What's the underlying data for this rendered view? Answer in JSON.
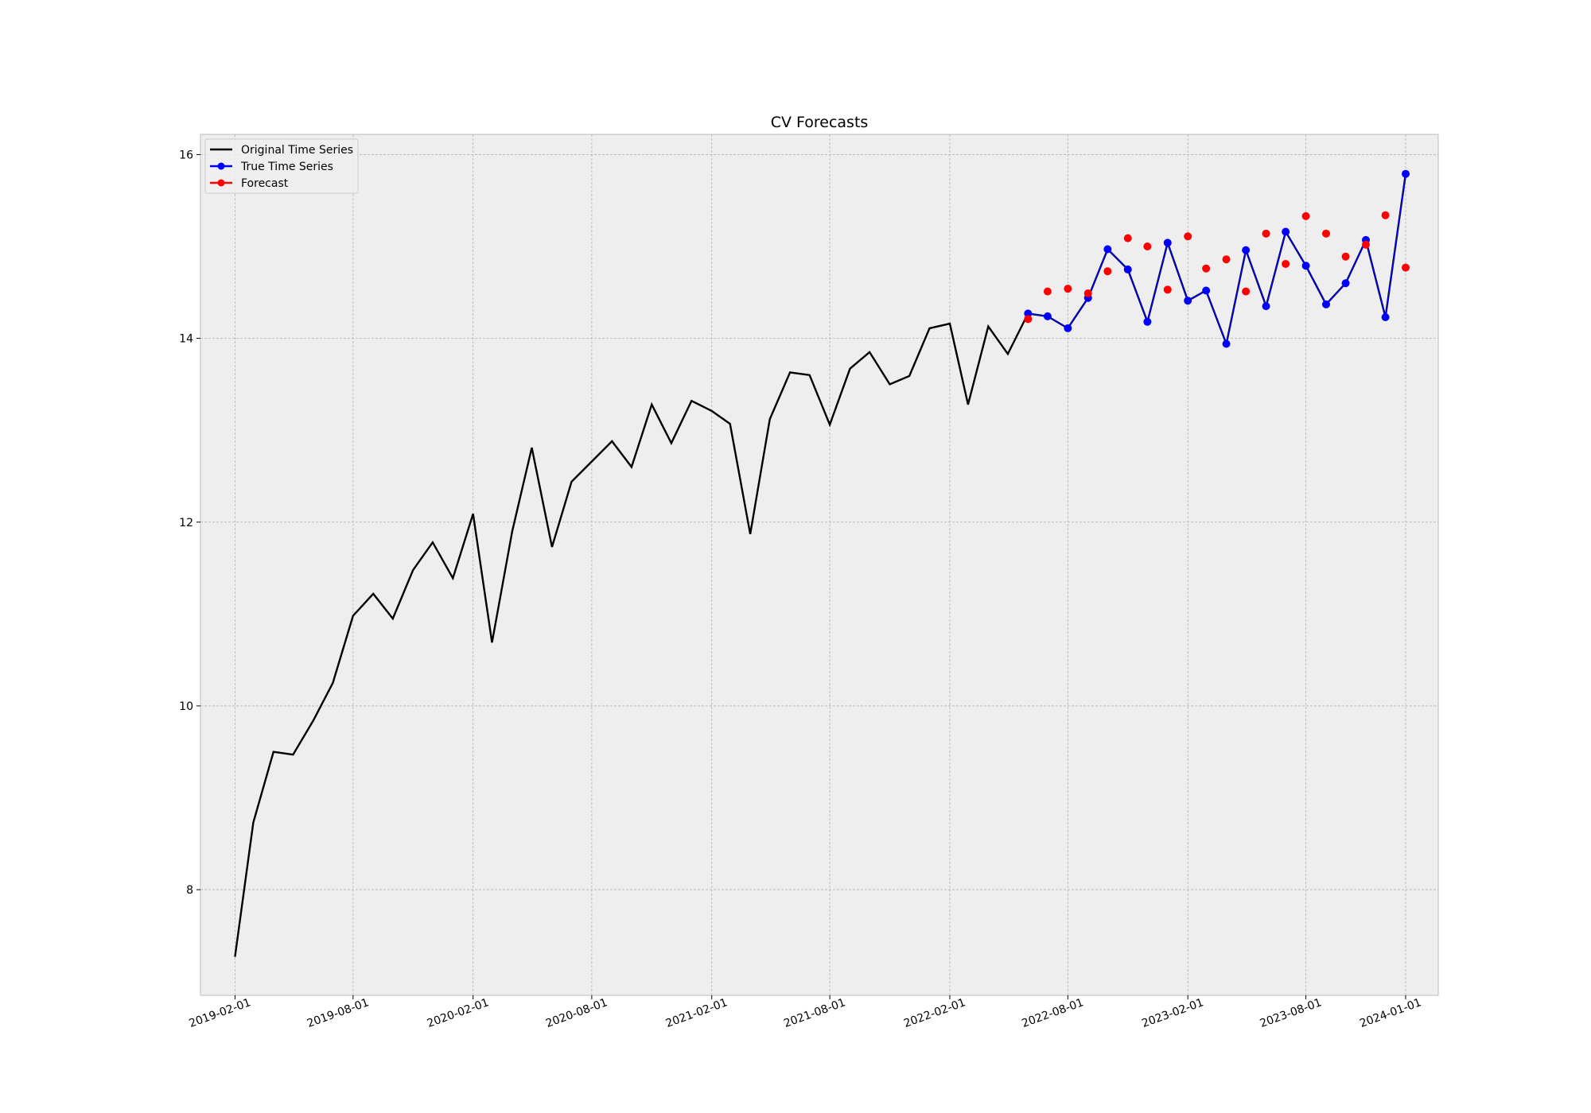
{
  "chart_data": {
    "type": "line",
    "title": "CV Forecasts",
    "xlabel": "",
    "ylabel": "",
    "x_range": [
      "2018-12-10",
      "2024-02-20"
    ],
    "ylim": [
      6.85,
      16.22
    ],
    "grid": true,
    "legend_position": "top-left",
    "x_ticks": [
      "2019-02-01",
      "2019-08-01",
      "2020-02-01",
      "2020-08-01",
      "2021-02-01",
      "2021-08-01",
      "2022-02-01",
      "2022-08-01",
      "2023-02-01",
      "2023-08-01",
      "2024-01-01"
    ],
    "y_ticks": [
      8,
      10,
      12,
      14,
      16
    ],
    "series": [
      {
        "name": "Original Time Series",
        "color": "#000000",
        "marker": false,
        "x": [
          "2019-02-01",
          "2019-03-01",
          "2019-04-01",
          "2019-05-01",
          "2019-06-01",
          "2019-07-01",
          "2019-08-01",
          "2019-09-01",
          "2019-10-01",
          "2019-11-01",
          "2019-12-01",
          "2020-01-01",
          "2020-02-01",
          "2020-03-01",
          "2020-04-01",
          "2020-05-01",
          "2020-06-01",
          "2020-07-01",
          "2020-08-01",
          "2020-09-01",
          "2020-10-01",
          "2020-11-01",
          "2020-12-01",
          "2021-01-01",
          "2021-02-01",
          "2021-03-01",
          "2021-04-01",
          "2021-05-01",
          "2021-06-01",
          "2021-07-01",
          "2021-08-01",
          "2021-09-01",
          "2021-10-01",
          "2021-11-01",
          "2021-12-01",
          "2022-01-01",
          "2022-02-01",
          "2022-03-01",
          "2022-04-01",
          "2022-05-01",
          "2022-06-01",
          "2022-07-01",
          "2022-08-01",
          "2022-09-01",
          "2022-10-01",
          "2022-11-01",
          "2022-12-01",
          "2023-01-01",
          "2023-02-01",
          "2023-03-01",
          "2023-04-01",
          "2023-05-01",
          "2023-06-01",
          "2023-07-01",
          "2023-08-01",
          "2023-09-01",
          "2023-10-01",
          "2023-11-01",
          "2023-12-01",
          "2024-01-01"
        ],
        "values": [
          7.27,
          8.73,
          9.5,
          9.47,
          9.84,
          10.25,
          10.98,
          11.22,
          10.95,
          11.48,
          11.78,
          11.39,
          12.09,
          10.69,
          11.9,
          12.81,
          11.73,
          12.44,
          12.66,
          12.88,
          12.6,
          13.28,
          12.86,
          13.32,
          13.21,
          13.07,
          11.87,
          13.12,
          13.63,
          13.6,
          13.06,
          13.67,
          13.85,
          13.5,
          13.59,
          14.11,
          14.16,
          13.28,
          14.13,
          13.83,
          14.27,
          14.24,
          14.11,
          14.44,
          14.97,
          14.75,
          14.18,
          15.04,
          14.41,
          14.52,
          13.94,
          14.96,
          14.35,
          15.16,
          14.79,
          14.37,
          14.6,
          15.07,
          14.23,
          15.79
        ]
      },
      {
        "name": "True Time Series",
        "color": "#0000ff",
        "marker": true,
        "x": [
          "2022-06-01",
          "2022-07-01",
          "2022-08-01",
          "2022-09-01",
          "2022-10-01",
          "2022-11-01",
          "2022-12-01",
          "2023-01-01",
          "2023-02-01",
          "2023-03-01",
          "2023-04-01",
          "2023-05-01",
          "2023-06-01",
          "2023-07-01",
          "2023-08-01",
          "2023-09-01",
          "2023-10-01",
          "2023-11-01",
          "2023-12-01",
          "2024-01-01"
        ],
        "values": [
          14.27,
          14.24,
          14.11,
          14.44,
          14.97,
          14.75,
          14.18,
          15.04,
          14.41,
          14.52,
          13.94,
          14.96,
          14.35,
          15.16,
          14.79,
          14.37,
          14.6,
          15.07,
          14.23,
          15.79
        ]
      },
      {
        "name": "Forecast",
        "color": "#ff0000",
        "marker": true,
        "x": [
          "2022-06-01",
          "2022-07-01",
          "2022-08-01",
          "2022-09-01",
          "2022-10-01",
          "2022-11-01",
          "2022-12-01",
          "2023-01-01",
          "2023-02-01",
          "2023-03-01",
          "2023-04-01",
          "2023-05-01",
          "2023-06-01",
          "2023-07-01",
          "2023-08-01",
          "2023-09-01",
          "2023-10-01",
          "2023-11-01",
          "2023-12-01",
          "2024-01-01"
        ],
        "values": [
          14.21,
          14.51,
          14.54,
          14.49,
          14.73,
          15.09,
          15.0,
          14.53,
          15.11,
          14.76,
          14.86,
          14.51,
          15.14,
          14.81,
          15.33,
          15.14,
          14.89,
          15.02,
          15.34,
          14.77
        ]
      }
    ]
  }
}
